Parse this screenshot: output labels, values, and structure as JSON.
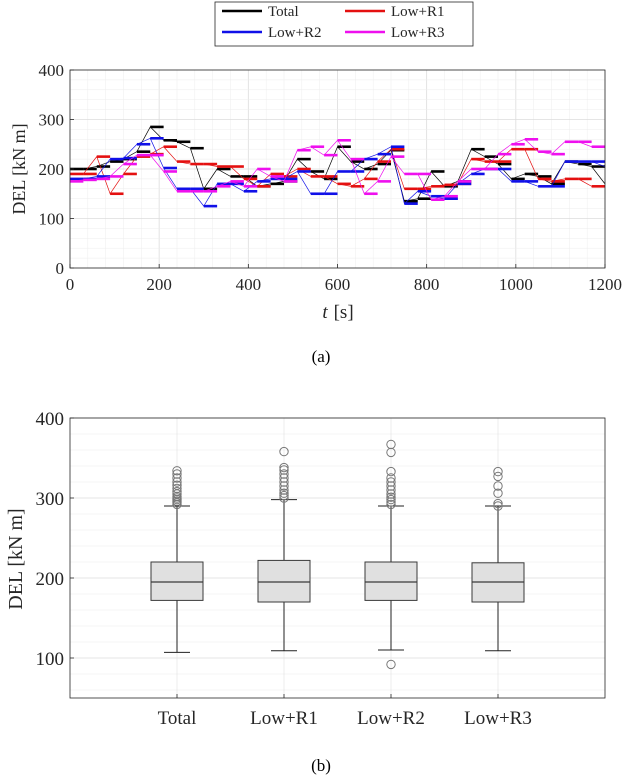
{
  "chart_data": [
    {
      "type": "line",
      "panel_label": "(a)",
      "xlabel_var": "t",
      "xlabel_unit": "[s]",
      "ylabel": "DEL [kN m]",
      "xlim": [
        0,
        1200
      ],
      "ylim": [
        0,
        400
      ],
      "xticks": [
        "0",
        "200",
        "400",
        "600",
        "800",
        "1000",
        "1200"
      ],
      "yticks": [
        "0",
        "100",
        "200",
        "300",
        "400"
      ],
      "grid": true,
      "legend_position": "top-center-outside",
      "series": [
        {
          "name": "Total",
          "color": "#000000",
          "x": [
            0,
            30,
            60,
            90,
            120,
            150,
            180,
            210,
            240,
            270,
            300,
            330,
            360,
            390,
            420,
            450,
            480,
            510,
            540,
            570,
            600,
            630,
            660,
            690,
            720,
            750,
            780,
            810,
            840,
            870,
            900,
            930,
            960,
            990,
            1020,
            1050,
            1080,
            1110,
            1140,
            1170,
            1200
          ],
          "y": [
            200,
            200,
            205,
            215,
            220,
            235,
            285,
            258,
            255,
            242,
            160,
            200,
            185,
            185,
            165,
            170,
            175,
            220,
            195,
            180,
            245,
            215,
            200,
            210,
            238,
            135,
            140,
            195,
            165,
            175,
            240,
            225,
            210,
            180,
            190,
            185,
            170,
            215,
            210,
            205,
            170
          ]
        },
        {
          "name": "Low+R1",
          "color": "#e41010",
          "x": [
            0,
            30,
            60,
            90,
            120,
            150,
            180,
            210,
            240,
            270,
            300,
            330,
            360,
            390,
            420,
            450,
            480,
            510,
            540,
            570,
            600,
            630,
            660,
            690,
            720,
            750,
            780,
            810,
            840,
            870,
            900,
            930,
            960,
            990,
            1020,
            1050,
            1080,
            1110,
            1140,
            1170,
            1200
          ],
          "y": [
            190,
            190,
            225,
            150,
            190,
            225,
            230,
            245,
            215,
            210,
            210,
            205,
            205,
            180,
            165,
            190,
            185,
            200,
            185,
            185,
            170,
            165,
            180,
            215,
            240,
            160,
            160,
            165,
            168,
            170,
            220,
            215,
            215,
            240,
            240,
            180,
            175,
            180,
            180,
            165,
            165
          ]
        },
        {
          "name": "Low+R2",
          "color": "#1010e8",
          "x": [
            0,
            30,
            60,
            90,
            120,
            150,
            180,
            210,
            240,
            270,
            300,
            330,
            360,
            390,
            420,
            450,
            480,
            510,
            540,
            570,
            600,
            630,
            660,
            690,
            720,
            750,
            780,
            810,
            840,
            870,
            900,
            930,
            960,
            990,
            1020,
            1050,
            1080,
            1110,
            1140,
            1170,
            1200
          ],
          "y": [
            180,
            180,
            185,
            220,
            222,
            250,
            262,
            202,
            160,
            160,
            125,
            170,
            170,
            155,
            175,
            180,
            180,
            195,
            150,
            150,
            195,
            195,
            220,
            230,
            245,
            130,
            155,
            145,
            140,
            170,
            190,
            200,
            200,
            175,
            175,
            165,
            165,
            215,
            215,
            215,
            205
          ]
        },
        {
          "name": "Low+R3",
          "color": "#ee10ee",
          "x": [
            0,
            30,
            60,
            90,
            120,
            150,
            180,
            210,
            240,
            270,
            300,
            330,
            360,
            390,
            420,
            450,
            480,
            510,
            540,
            570,
            600,
            630,
            660,
            690,
            720,
            750,
            780,
            810,
            840,
            870,
            900,
            930,
            960,
            990,
            1020,
            1050,
            1080,
            1110,
            1140,
            1170,
            1200
          ],
          "y": [
            175,
            178,
            180,
            185,
            210,
            228,
            228,
            195,
            155,
            155,
            155,
            165,
            175,
            165,
            200,
            185,
            175,
            238,
            245,
            228,
            258,
            220,
            150,
            175,
            225,
            190,
            190,
            138,
            145,
            175,
            200,
            200,
            230,
            250,
            260,
            235,
            230,
            255,
            255,
            245,
            245
          ]
        }
      ]
    },
    {
      "type": "box",
      "panel_label": "(b)",
      "ylabel": "DEL [kN m]",
      "ylim": [
        50,
        400
      ],
      "yticks": [
        "100",
        "200",
        "300",
        "400"
      ],
      "grid": true,
      "categories": [
        "Total",
        "Low+R1",
        "Low+R2",
        "Low+R3"
      ],
      "boxes": [
        {
          "whisker_low": 107,
          "q1": 172,
          "median": 195,
          "q3": 220,
          "whisker_high": 290,
          "outliers": [
            292,
            294,
            296,
            298,
            300,
            302,
            305,
            308,
            312,
            316,
            320,
            325,
            330,
            334
          ]
        },
        {
          "whisker_low": 109,
          "q1": 170,
          "median": 195,
          "q3": 222,
          "whisker_high": 298,
          "outliers": [
            300,
            303,
            306,
            310,
            315,
            320,
            325,
            330,
            335,
            338,
            358
          ]
        },
        {
          "whisker_low": 110,
          "q1": 172,
          "median": 195,
          "q3": 220,
          "whisker_high": 290,
          "outliers": [
            92,
            292,
            295,
            298,
            301,
            305,
            310,
            315,
            320,
            325,
            333,
            357,
            367
          ]
        },
        {
          "whisker_low": 109,
          "q1": 170,
          "median": 195,
          "q3": 219,
          "whisker_high": 290,
          "outliers": [
            290,
            293,
            306,
            315,
            327,
            333
          ]
        }
      ]
    }
  ]
}
